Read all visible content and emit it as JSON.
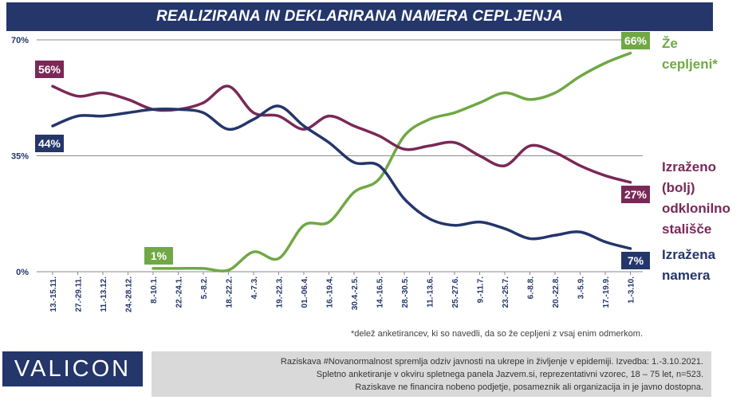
{
  "title": "REALIZIRANA IN DEKLARIRANA NAMERA CEPLJENJA",
  "footnote": "*delež anketirancev, ki so navedli, da so že cepljeni z vsaj enim odmerkom.",
  "logo": "VALICON",
  "info": [
    "Raziskava #Novanormalnost spremlja odziv javnosti na ukrepe in življenje v epidemiji. Izvedba: 1.-3.10.2021.",
    "Spletno anketiranje v okviru spletnega panela Jazvem.si, reprezentativni vzorec,  18 – 75 let, n=523.",
    "Raziskave ne financira nobeno podjetje, posameznik ali organizacija in je javno dostopna."
  ],
  "chart_data": {
    "type": "line",
    "categories": [
      "13.-15.11.",
      "27.-29.11.",
      "11.-13.12.",
      "24.-28.12.",
      "8.-10.1.",
      "22.-24.1.",
      "5.-8.2.",
      "18.-22.2.",
      "4.-7.3.",
      "19.-22.3.",
      "01.-06.4.",
      "16.-19.4.",
      "30.4.-2.5.",
      "14.-16.5.",
      "28.-30.5.",
      "11.-13.6.",
      "25.-27.6.",
      "9.-11.7.",
      "23.-25.7.",
      "6.-8.8.",
      "20.-22.8.",
      "3.-5.9.",
      "17.-19.9.",
      "1.-3.10."
    ],
    "ylim": [
      0,
      70
    ],
    "yticks": [
      "0%",
      "35%",
      "70%"
    ],
    "gridlines": [
      35,
      70
    ],
    "series": [
      {
        "name": "Že cepljeni*",
        "color": "#70a845",
        "values": [
          null,
          null,
          null,
          null,
          1,
          1,
          1,
          0.5,
          6,
          4,
          14,
          15,
          24,
          28,
          41,
          46,
          48,
          51,
          54,
          52,
          54,
          59,
          63,
          66
        ],
        "start_label": "1%",
        "end_label": "66%",
        "legend_lines": [
          "Že",
          "cepljeni*"
        ]
      },
      {
        "name": "Izraženo (bolj) odklonilno stališče",
        "color": "#7a2857",
        "values": [
          56,
          53,
          54,
          52,
          49,
          49,
          51,
          56,
          48,
          47,
          43,
          47,
          44,
          41,
          37,
          38,
          39,
          35,
          32,
          38,
          36,
          32,
          29,
          27
        ],
        "start_label": "56%",
        "end_label": "27%",
        "legend_lines": [
          "Izraženo",
          "(bolj)",
          "odklonilno",
          "stališče"
        ]
      },
      {
        "name": "Izražena namera",
        "color": "#24366a",
        "values": [
          44,
          47,
          47,
          48,
          49,
          49,
          48,
          43,
          46,
          50,
          44,
          39,
          33,
          32,
          22,
          16,
          14,
          15,
          13,
          10,
          11,
          12,
          9,
          7
        ],
        "start_label": "44%",
        "end_label": "7%",
        "legend_lines": [
          "Izražena",
          "namera"
        ]
      }
    ]
  }
}
